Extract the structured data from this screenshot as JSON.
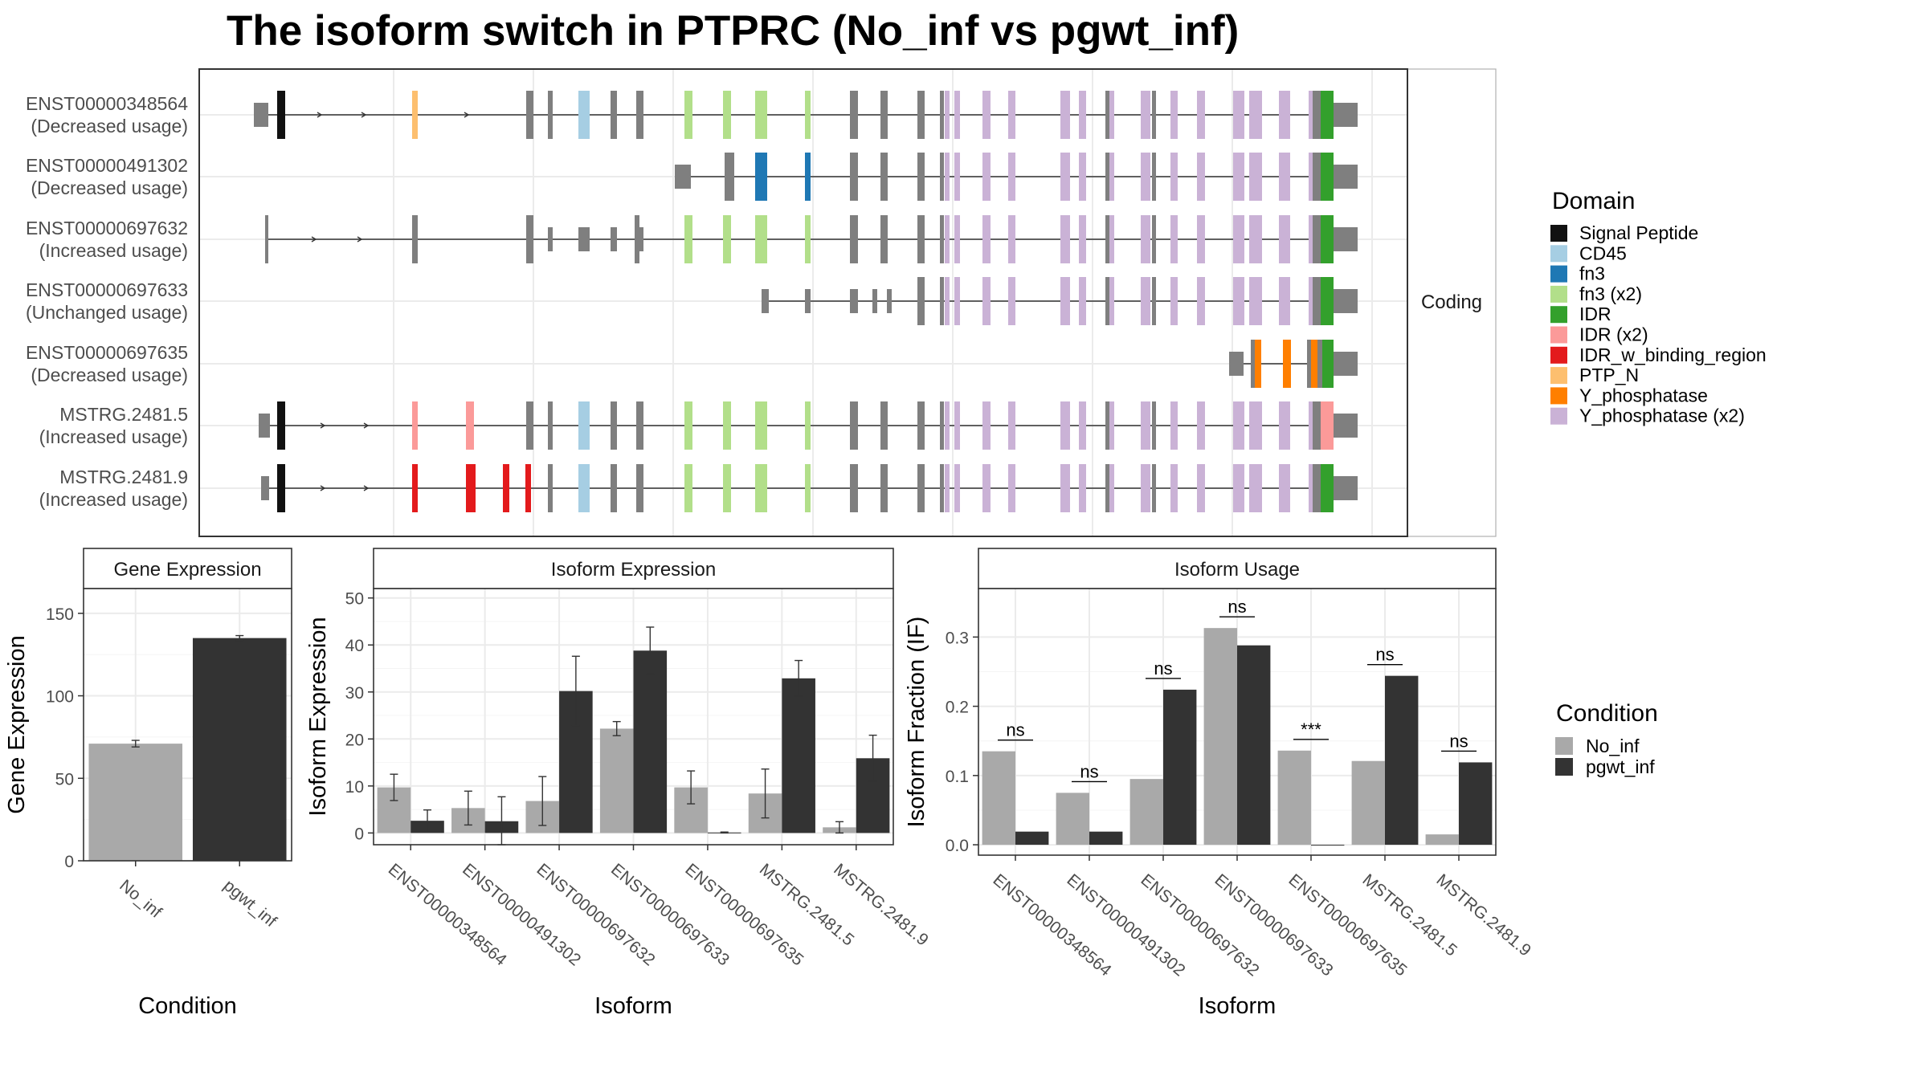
{
  "title": "The isoform switch in PTPRC (No_inf vs pgwt_inf)",
  "colors": {
    "Signal Peptide": "#111111",
    "CD45": "#a6cee3",
    "fn3": "#1f78b4",
    "fn3 (x2)": "#b2df8a",
    "IDR": "#33a02c",
    "IDR (x2)": "#fb9a99",
    "IDR_w_binding_region": "#e31a1c",
    "PTP_N": "#fdbf6f",
    "Y_phosphatase": "#ff7f00",
    "Y_phosphatase (x2)": "#cab2d6",
    "exon": "#7f7f7f",
    "No_inf": "#a9a9a9",
    "pgwt_inf": "#333333"
  },
  "structure": {
    "strip_label": "Coding",
    "legend_title": "Domain",
    "legend_items": [
      "Signal Peptide",
      "CD45",
      "fn3",
      "fn3 (x2)",
      "IDR",
      "IDR (x2)",
      "IDR_w_binding_region",
      "PTP_N",
      "Y_phosphatase",
      "Y_phosphatase (x2)"
    ],
    "isoforms": [
      {
        "id": "ENST00000348564",
        "usage": "(Decreased usage)"
      },
      {
        "id": "ENST00000491302",
        "usage": "(Decreased usage)"
      },
      {
        "id": "ENST00000697632",
        "usage": "(Increased usage)"
      },
      {
        "id": "ENST00000697633",
        "usage": "(Unchanged usage)"
      },
      {
        "id": "ENST00000697635",
        "usage": "(Decreased usage)"
      },
      {
        "id": "MSTRG.2481.5",
        "usage": "(Increased usage)"
      },
      {
        "id": "MSTRG.2481.9",
        "usage": "(Increased usage)"
      }
    ]
  },
  "condition_legend": {
    "title": "Condition",
    "items": [
      "No_inf",
      "pgwt_inf"
    ]
  },
  "chart_data": [
    {
      "type": "bar",
      "title": "Gene Expression",
      "xlabel": "Condition",
      "ylabel": "Gene Expression",
      "categories": [
        "No_inf",
        "pgwt_inf"
      ],
      "values": [
        71,
        135
      ],
      "errors": [
        2,
        1.5
      ],
      "ylim": [
        0,
        165
      ],
      "yticks": [
        0,
        50,
        100,
        150
      ]
    },
    {
      "type": "bar",
      "title": "Isoform Expression",
      "xlabel": "Isoform",
      "ylabel": "Isoform Expression",
      "categories": [
        "ENST00000348564",
        "ENST00000491302",
        "ENST00000697632",
        "ENST00000697633",
        "ENST00000697635",
        "MSTRG.2481.5",
        "MSTRG.2481.9"
      ],
      "series": [
        {
          "name": "No_inf",
          "values": [
            9.7,
            5.3,
            6.8,
            22.2,
            9.7,
            8.4,
            1.2
          ],
          "errors": [
            2.8,
            3.6,
            5.2,
            1.5,
            3.5,
            5.2,
            1.2
          ]
        },
        {
          "name": "pgwt_inf",
          "values": [
            2.6,
            2.5,
            30.2,
            38.8,
            0.1,
            32.9,
            15.9
          ],
          "errors": [
            2.3,
            5.2,
            7.4,
            5.0,
            0.1,
            3.8,
            4.9
          ]
        }
      ],
      "ylim": [
        -2.5,
        52
      ],
      "yticks": [
        0,
        10,
        20,
        30,
        40,
        50
      ]
    },
    {
      "type": "bar",
      "title": "Isoform Usage",
      "xlabel": "Isoform",
      "ylabel": "Isoform Fraction (IF)",
      "categories": [
        "ENST00000348564",
        "ENST00000491302",
        "ENST00000697632",
        "ENST00000697633",
        "ENST00000697635",
        "MSTRG.2481.5",
        "MSTRG.2481.9"
      ],
      "series": [
        {
          "name": "No_inf",
          "values": [
            0.135,
            0.075,
            0.095,
            0.313,
            0.136,
            0.121,
            0.015
          ]
        },
        {
          "name": "pgwt_inf",
          "values": [
            0.019,
            0.019,
            0.224,
            0.288,
            0.0,
            0.244,
            0.119
          ]
        }
      ],
      "significance": [
        "ns",
        "ns",
        "ns",
        "ns",
        "***",
        "ns",
        "ns"
      ],
      "ylim": [
        -0.015,
        0.37
      ],
      "yticks": [
        0.0,
        0.1,
        0.2,
        0.3
      ],
      "ytick_labels": [
        "0.0",
        "0.1",
        "0.2",
        "0.3"
      ]
    }
  ]
}
